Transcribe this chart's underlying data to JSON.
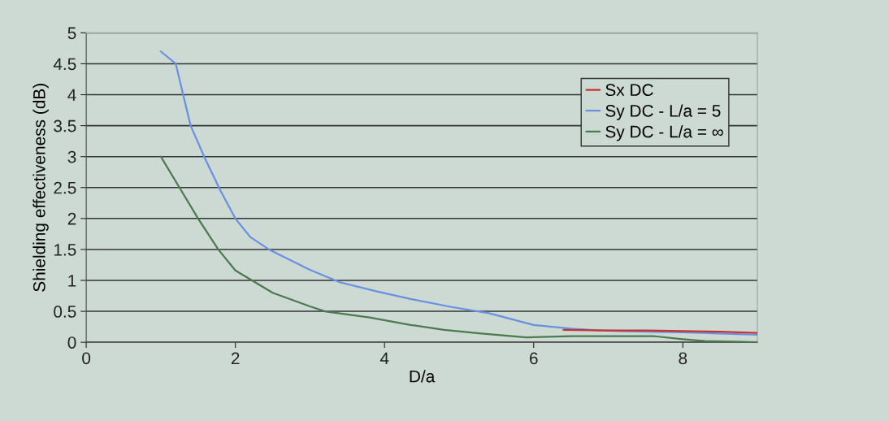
{
  "chart_data": {
    "type": "line",
    "xlabel": "D/a",
    "ylabel": "Shielding effectiveness (dB)",
    "xlim": [
      0,
      9
    ],
    "xticks": [
      0,
      2,
      4,
      6,
      8
    ],
    "ylim": [
      0,
      5
    ],
    "yticks": [
      0,
      0.5,
      1,
      1.5,
      2,
      2.5,
      3,
      3.5,
      4,
      4.5,
      5
    ],
    "grid": "y",
    "legend": "top right",
    "marker": "none",
    "line_style": "solid",
    "series": [
      {
        "name": "Sx DC",
        "color": "#c83232",
        "x": [
          6.4,
          7,
          7.5,
          8,
          8.5,
          9
        ],
        "values": [
          0.2,
          0.19,
          0.19,
          0.18,
          0.17,
          0.15
        ]
      },
      {
        "name": "Sy DC - L/a = 5",
        "color": "#6a90e0",
        "x": [
          1.0,
          1.2,
          1.4,
          1.6,
          1.8,
          2.0,
          2.2,
          2.45,
          3.0,
          3.4,
          3.9,
          4.35,
          4.9,
          5.4,
          6.0,
          6.5,
          6.9,
          7.5,
          8.0,
          8.5,
          9.0
        ],
        "values": [
          4.7,
          4.5,
          3.5,
          2.95,
          2.45,
          2.0,
          1.7,
          1.5,
          1.17,
          0.97,
          0.82,
          0.7,
          0.57,
          0.47,
          0.28,
          0.22,
          0.19,
          0.17,
          0.16,
          0.14,
          0.12
        ]
      },
      {
        "name": "Sy DC - L/a = ∞",
        "color": "#4a7a4e",
        "x": [
          1.0,
          1.25,
          1.5,
          1.77,
          2.0,
          2.5,
          3.0,
          3.2,
          3.8,
          4.35,
          4.8,
          5.3,
          5.9,
          6.5,
          7.0,
          7.6,
          8.0,
          8.3,
          8.7,
          9.0
        ],
        "values": [
          3.0,
          2.5,
          2.0,
          1.5,
          1.16,
          0.8,
          0.58,
          0.5,
          0.4,
          0.28,
          0.2,
          0.14,
          0.08,
          0.1,
          0.1,
          0.1,
          0.05,
          0.02,
          0.01,
          0.0
        ]
      }
    ]
  }
}
